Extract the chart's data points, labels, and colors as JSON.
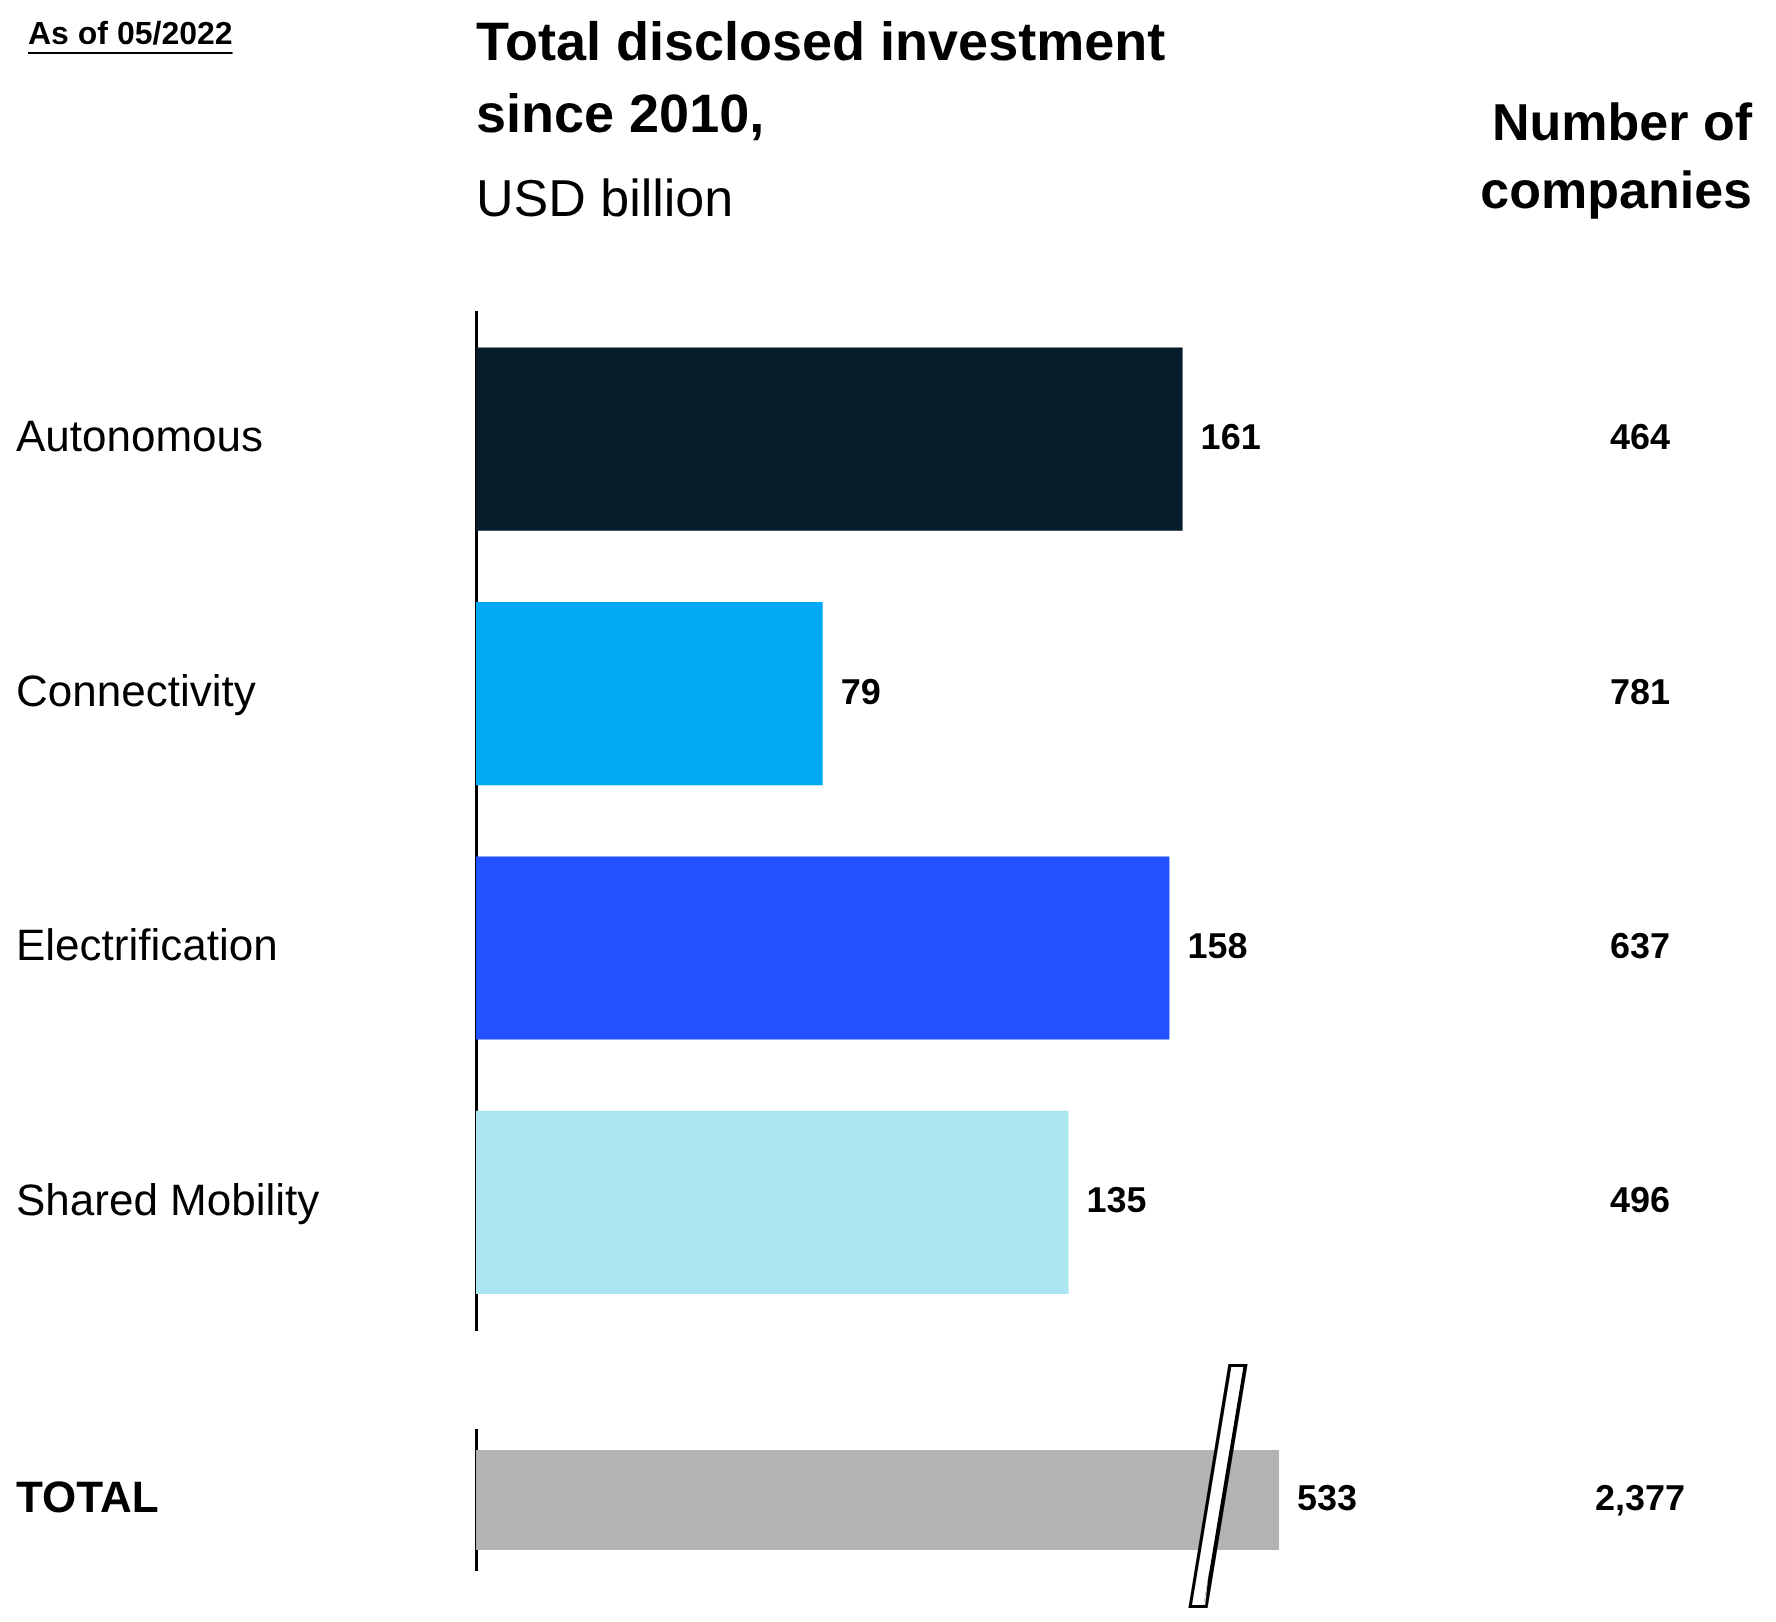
{
  "chart_data": [
    {
      "type": "bar",
      "orientation": "horizontal",
      "title": "Total disclosed investment since 2010,",
      "subtitle": "USD billion",
      "categories": [
        "Autonomous",
        "Connectivity",
        "Electrification",
        "Shared Mobility"
      ],
      "series": [
        {
          "colors": [
            "#061c2b",
            "#00a9f4",
            "#2251ff",
            "#aae6f0"
          ],
          "values": [
            161,
            79,
            158,
            135
          ]
        }
      ],
      "tick_labels": "y",
      "data_labels": true,
      "grid": false,
      "legend": false,
      "annotations": [
        "As of 05/2022",
        "Number of companies",
        "464",
        "781",
        "637",
        "496"
      ]
    },
    {
      "type": "bar",
      "orientation": "horizontal",
      "categories": [
        "TOTAL"
      ],
      "series": [
        {
          "colors": [
            "#b3b3b3"
          ],
          "values": [
            533
          ]
        }
      ],
      "tick_labels": "y",
      "data_labels": true,
      "grid": false,
      "legend": false,
      "annotations": [
        "2,377"
      ]
    }
  ]
}
